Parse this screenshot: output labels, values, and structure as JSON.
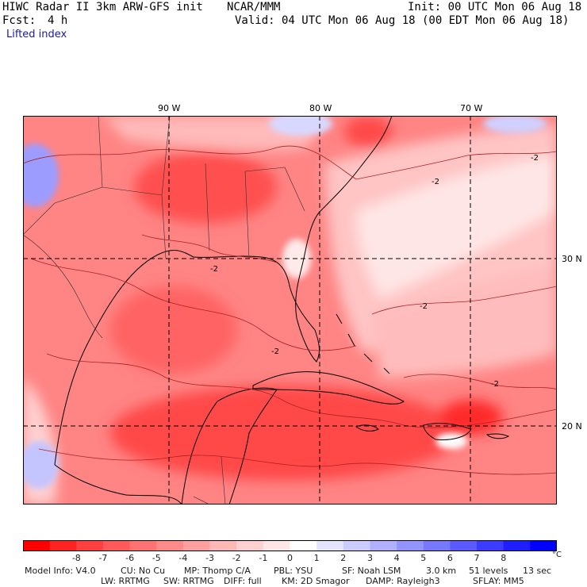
{
  "header": {
    "title_left": "HIWC Radar II 3km ARW-GFS init",
    "org": "NCAR/MMM",
    "init": "Init: 00 UTC Mon 06 Aug 18",
    "fcst_label": "Fcst:",
    "fcst_value": "4 h",
    "valid": "Valid: 04 UTC Mon 06 Aug 18 (00 EDT Mon 06 Aug 18)",
    "field": "Lifted index"
  },
  "map": {
    "lon_labels": [
      "90 W",
      "80 W",
      "70 W"
    ],
    "lat_labels": [
      "30 N",
      "20 N"
    ],
    "contour_labels": [
      "-2",
      "-2",
      "-2",
      "-2",
      "-2",
      "-2"
    ]
  },
  "colorbar": {
    "ticks": [
      "-8",
      "-7",
      "-6",
      "-5",
      "-4",
      "-3",
      "-2",
      "-1",
      "0",
      "1",
      "2",
      "3",
      "4",
      "5",
      "6",
      "7",
      "8"
    ],
    "unit": "°C",
    "colors": [
      "#ff0000",
      "#ff2222",
      "#ff4040",
      "#ff5a5a",
      "#ff7272",
      "#ff8a8a",
      "#ffa0a0",
      "#ffb8b8",
      "#ffd0d0",
      "#ffe6e6",
      "#ffffff",
      "#e4e4ff",
      "#ccccff",
      "#b0b0ff",
      "#9494ff",
      "#7878ff",
      "#5a5aff",
      "#3c3cff",
      "#1e1eff",
      "#0000ff"
    ]
  },
  "info": {
    "line1": [
      "Model Info: V4.0",
      "CU: No Cu",
      "MP: Thomp C/A",
      "PBL: YSU",
      "SF: Noah LSM",
      "3.0 km",
      "51 levels",
      "13 sec"
    ],
    "line2": [
      "LW: RRTMG",
      "SW: RRTMG",
      "DIFF: full",
      "KM: 2D Smagor",
      "DAMP: Rayleigh3",
      "SFLAY: MM5"
    ]
  },
  "palette": {
    "land_sea_base": "#ff8080",
    "strong": "#ff3b3b",
    "weak": "#ffc4c4",
    "neutral": "#ffffff",
    "stable": "#b8b8ff",
    "coast": "#000000",
    "contour": "#b02020"
  }
}
